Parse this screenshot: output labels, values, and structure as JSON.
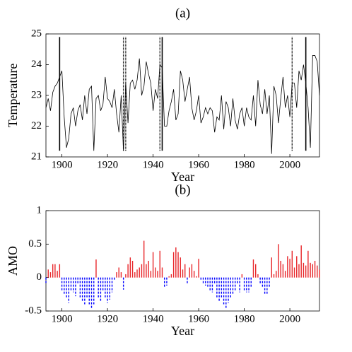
{
  "chart_data": [
    {
      "type": "line",
      "title": "(a)",
      "xlabel": "Year",
      "ylabel": "Temperature",
      "x": [
        1893,
        1894,
        1895,
        1896,
        1897,
        1898,
        1899,
        1900,
        1901,
        1902,
        1903,
        1904,
        1905,
        1906,
        1907,
        1908,
        1909,
        1910,
        1911,
        1912,
        1913,
        1914,
        1915,
        1916,
        1917,
        1918,
        1919,
        1920,
        1921,
        1922,
        1923,
        1924,
        1925,
        1926,
        1927,
        1928,
        1929,
        1930,
        1931,
        1932,
        1933,
        1934,
        1935,
        1936,
        1937,
        1938,
        1939,
        1940,
        1941,
        1942,
        1943,
        1944,
        1945,
        1946,
        1947,
        1948,
        1949,
        1950,
        1951,
        1952,
        1953,
        1954,
        1955,
        1956,
        1957,
        1958,
        1959,
        1960,
        1961,
        1962,
        1963,
        1964,
        1965,
        1966,
        1967,
        1968,
        1969,
        1970,
        1971,
        1972,
        1973,
        1974,
        1975,
        1976,
        1977,
        1978,
        1979,
        1980,
        1981,
        1982,
        1983,
        1984,
        1985,
        1986,
        1987,
        1988,
        1989,
        1990,
        1991,
        1992,
        1993,
        1994,
        1995,
        1996,
        1997,
        1998,
        1999,
        2000,
        2001,
        2002,
        2003,
        2004,
        2005,
        2006,
        2007,
        2008,
        2009,
        2010,
        2011,
        2012,
        2013
      ],
      "values": [
        22.6,
        22.9,
        22.5,
        23.1,
        23.3,
        23.4,
        23.6,
        23.8,
        22.3,
        21.3,
        21.6,
        22.4,
        22.6,
        22.0,
        22.5,
        22.7,
        22.2,
        23.0,
        22.4,
        23.2,
        23.3,
        21.2,
        22.9,
        23.0,
        22.5,
        22.7,
        23.6,
        22.9,
        22.8,
        22.6,
        23.2,
        22.4,
        21.8,
        23.0,
        21.2,
        23.4,
        22.1,
        23.4,
        23.5,
        23.2,
        23.5,
        24.2,
        23.0,
        23.3,
        24.1,
        23.7,
        23.4,
        22.5,
        23.2,
        22.9,
        24.0,
        23.9,
        22.0,
        22.0,
        22.5,
        22.8,
        23.2,
        22.2,
        22.4,
        23.8,
        23.5,
        22.8,
        23.2,
        23.6,
        22.6,
        22.2,
        22.5,
        23.0,
        22.1,
        22.3,
        22.6,
        22.4,
        22.6,
        22.5,
        21.8,
        22.3,
        22.2,
        23.0,
        21.9,
        22.8,
        22.6,
        22.0,
        22.9,
        22.2,
        21.9,
        22.4,
        22.6,
        22.0,
        22.6,
        22.3,
        22.2,
        23.0,
        22.0,
        23.5,
        22.7,
        22.4,
        23.2,
        22.4,
        23.0,
        21.1,
        23.3,
        23.0,
        22.1,
        22.9,
        23.6,
        22.6,
        23.0,
        22.3,
        23.4,
        23.4,
        22.6,
        23.8,
        23.5,
        24.0,
        23.4,
        22.6,
        21.3,
        24.3,
        24.3,
        24.1,
        23.0
      ],
      "color": "#000000",
      "vlines": [
        {
          "x": 1899,
          "style": "solid"
        },
        {
          "x": 1927,
          "style": "dotted"
        },
        {
          "x": 1928,
          "style": "dotted"
        },
        {
          "x": 1943,
          "style": "dotted"
        },
        {
          "x": 1944,
          "style": "solid"
        },
        {
          "x": 2001,
          "style": "dotted"
        },
        {
          "x": 2007,
          "style": "solid"
        }
      ],
      "vline_range": [
        21.2,
        24.9
      ],
      "xlim": [
        1893,
        2013
      ],
      "xticks": [
        1900,
        1920,
        1940,
        1960,
        1980,
        2000
      ],
      "ylim": [
        21,
        25
      ],
      "yticks": [
        21,
        22,
        23,
        24,
        25
      ]
    },
    {
      "type": "bar",
      "title": "(b)",
      "xlabel": "Year",
      "ylabel": "AMO",
      "x": [
        1893,
        1894,
        1895,
        1896,
        1897,
        1898,
        1899,
        1900,
        1901,
        1902,
        1903,
        1904,
        1905,
        1906,
        1907,
        1908,
        1909,
        1910,
        1911,
        1912,
        1913,
        1914,
        1915,
        1916,
        1917,
        1918,
        1919,
        1920,
        1921,
        1922,
        1923,
        1924,
        1925,
        1926,
        1927,
        1928,
        1929,
        1930,
        1931,
        1932,
        1933,
        1934,
        1935,
        1936,
        1937,
        1938,
        1939,
        1940,
        1941,
        1942,
        1943,
        1944,
        1945,
        1946,
        1947,
        1948,
        1949,
        1950,
        1951,
        1952,
        1953,
        1954,
        1955,
        1956,
        1957,
        1958,
        1959,
        1960,
        1961,
        1962,
        1963,
        1964,
        1965,
        1966,
        1967,
        1968,
        1969,
        1970,
        1971,
        1972,
        1973,
        1974,
        1975,
        1976,
        1977,
        1978,
        1979,
        1980,
        1981,
        1982,
        1983,
        1984,
        1985,
        1986,
        1987,
        1988,
        1989,
        1990,
        1991,
        1992,
        1993,
        1994,
        1995,
        1996,
        1997,
        1998,
        1999,
        2000,
        2001,
        2002,
        2003,
        2004,
        2005,
        2006,
        2007,
        2008,
        2009,
        2010,
        2011,
        2012,
        2013
      ],
      "values": [
        -0.08,
        0.12,
        0.08,
        0.2,
        0.2,
        0.1,
        0.2,
        -0.2,
        -0.25,
        -0.3,
        -0.38,
        -0.2,
        -0.22,
        -0.28,
        -0.1,
        -0.3,
        -0.35,
        -0.4,
        -0.3,
        -0.4,
        -0.47,
        -0.4,
        0.27,
        -0.3,
        -0.35,
        -0.2,
        -0.3,
        -0.38,
        -0.33,
        -0.22,
        -0.05,
        0.08,
        0.15,
        0.08,
        -0.18,
        0.05,
        0.2,
        0.3,
        0.25,
        0.08,
        0.12,
        0.15,
        0.2,
        0.55,
        0.2,
        0.25,
        0.1,
        0.38,
        0.15,
        0.1,
        0.4,
        0.15,
        -0.15,
        -0.12,
        0.02,
        0.05,
        0.38,
        0.45,
        0.38,
        0.3,
        0.12,
        0.2,
        -0.1,
        0.15,
        0.2,
        0.1,
        0.02,
        0.28,
        -0.05,
        -0.1,
        -0.12,
        -0.15,
        -0.2,
        -0.22,
        -0.1,
        -0.3,
        -0.35,
        -0.3,
        -0.4,
        -0.47,
        -0.38,
        -0.3,
        -0.25,
        -0.2,
        -0.1,
        -0.22,
        0.05,
        -0.2,
        -0.22,
        -0.22,
        -0.15,
        0.27,
        0.2,
        0.05,
        -0.1,
        -0.15,
        -0.25,
        -0.25,
        -0.15,
        0.3,
        0.05,
        0.1,
        0.5,
        0.25,
        0.2,
        0.1,
        0.32,
        0.28,
        0.4,
        0.15,
        0.32,
        0.2,
        0.48,
        0.22,
        0.18,
        0.4,
        0.22,
        0.2,
        0.25,
        0.18,
        0.12
      ],
      "positive_color": "#e8262a",
      "negative_color": "#0000ff",
      "negative_style": "dashed",
      "xlim": [
        1893,
        2013
      ],
      "xticks": [
        1900,
        1920,
        1940,
        1960,
        1980,
        2000
      ],
      "ylim": [
        -0.5,
        1
      ],
      "yticks": [
        -0.5,
        0,
        0.5,
        1
      ]
    }
  ]
}
